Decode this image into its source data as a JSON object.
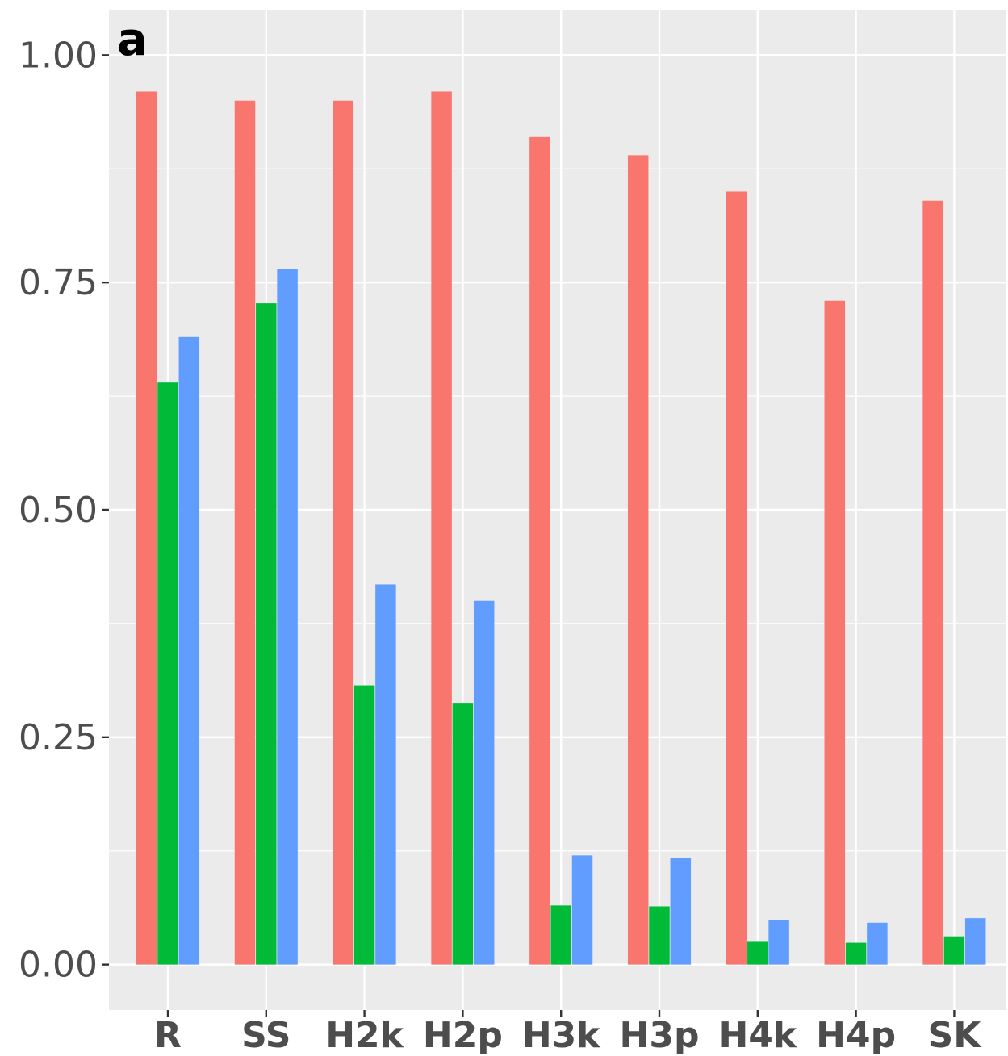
{
  "panel_label": "a",
  "chart_data": {
    "type": "bar",
    "title": "",
    "xlabel": "",
    "ylabel": "",
    "categories": [
      "R",
      "SS",
      "H2k",
      "H2p",
      "H3k",
      "H3p",
      "H4k",
      "H4p",
      "SK"
    ],
    "series": [
      {
        "color": "#F8766D",
        "values": [
          0.96,
          0.95,
          0.95,
          0.96,
          0.91,
          0.89,
          0.85,
          0.73,
          0.84
        ]
      },
      {
        "color": "#00BA38",
        "values": [
          0.64,
          0.727,
          0.307,
          0.287,
          0.065,
          0.064,
          0.025,
          0.024,
          0.031
        ]
      },
      {
        "color": "#619CFF",
        "values": [
          0.69,
          0.765,
          0.418,
          0.4,
          0.12,
          0.117,
          0.049,
          0.046,
          0.051
        ]
      }
    ],
    "ylim": [
      -0.05,
      1.05
    ],
    "y_ticks": [
      0,
      0.25,
      0.5,
      0.75,
      1
    ],
    "y_tick_labels": [
      "0.00",
      "0.25",
      "0.50",
      "0.75",
      "1.00"
    ],
    "grid": true,
    "panel_background": "#EBEBEB",
    "grid_color": "#FFFFFF",
    "legend": "none"
  }
}
